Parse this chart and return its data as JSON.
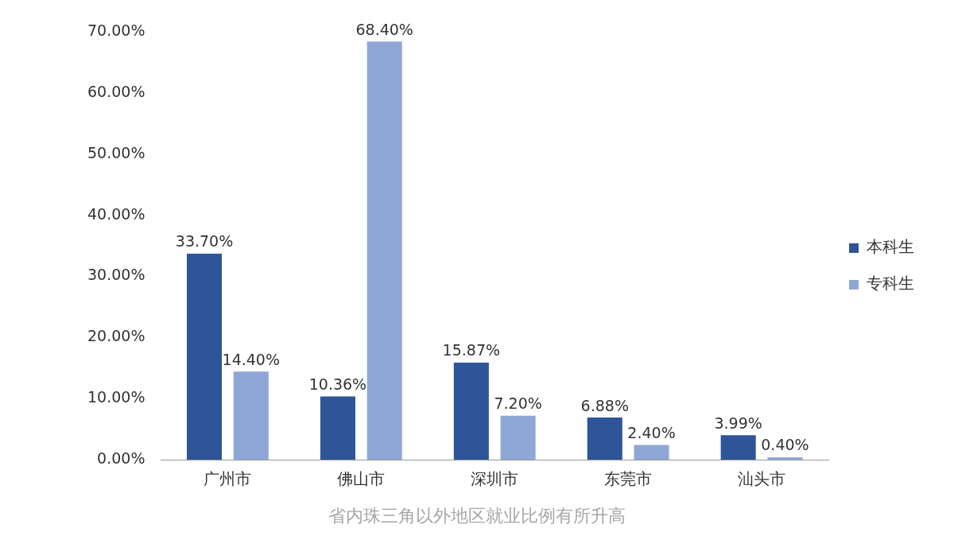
{
  "chart_data": {
    "type": "bar",
    "categories": [
      "广州市",
      "佛山市",
      "深圳市",
      "东莞市",
      "汕头市"
    ],
    "series": [
      {
        "name": "本科生",
        "color": "#2e5597",
        "values": [
          33.7,
          10.36,
          15.87,
          6.88,
          3.99
        ],
        "value_labels": [
          "33.70%",
          "10.36%",
          "15.87%",
          "6.88%",
          "3.99%"
        ]
      },
      {
        "name": "专科生",
        "color": "#8fa7d6",
        "values": [
          14.4,
          68.4,
          7.2,
          2.4,
          0.4
        ],
        "value_labels": [
          "14.40%",
          "68.40%",
          "7.20%",
          "2.40%",
          "0.40%"
        ]
      }
    ],
    "ylim": [
      0,
      70
    ],
    "yticks": [
      {
        "value": 0,
        "label": "0.00%"
      },
      {
        "value": 10,
        "label": "10.00%"
      },
      {
        "value": 20,
        "label": "20.00%"
      },
      {
        "value": 30,
        "label": "30.00%"
      },
      {
        "value": 40,
        "label": "40.00%"
      },
      {
        "value": 50,
        "label": "50.00%"
      },
      {
        "value": 60,
        "label": "60.00%"
      },
      {
        "value": 70,
        "label": "70.00%"
      }
    ],
    "grid": false,
    "legend": "right",
    "annotations": [
      "省内珠三角以外地区就业比例有所升高"
    ]
  }
}
